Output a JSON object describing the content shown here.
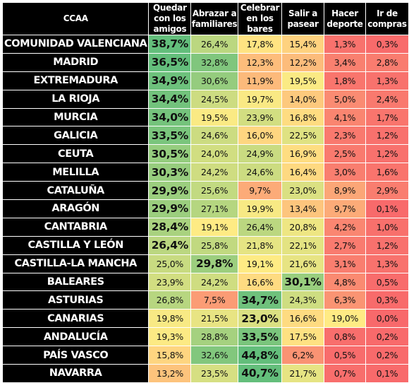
{
  "table": {
    "headers": [
      "CCAA",
      "Quedar con los amigos",
      "Abrazar a familiares",
      "Celebrar en los bares",
      "Salir a pasear",
      "Hacer deporte",
      "Ir de compras"
    ],
    "rows": [
      {
        "region": "COMUNIDAD VALENCIANA",
        "values": [
          "38,7%",
          "26,4%",
          "17,8%",
          "15,4%",
          "1,3%",
          "0,3%"
        ],
        "bold": 0
      },
      {
        "region": "MADRID",
        "values": [
          "36,5%",
          "32,8%",
          "12,3%",
          "12,2%",
          "3,4%",
          "2,8%"
        ],
        "bold": 0
      },
      {
        "region": "EXTREMADURA",
        "values": [
          "34,9%",
          "30,6%",
          "11,9%",
          "19,5%",
          "1,8%",
          "1,3%"
        ],
        "bold": 0
      },
      {
        "region": "LA RIOJA",
        "values": [
          "34,4%",
          "24,5%",
          "19,7%",
          "14,0%",
          "5,0%",
          "2,4%"
        ],
        "bold": 0
      },
      {
        "region": "MURCIA",
        "values": [
          "34,0%",
          "19,5%",
          "23,9%",
          "16,8%",
          "4,1%",
          "1,7%"
        ],
        "bold": 0
      },
      {
        "region": "GALICIA",
        "values": [
          "33,5%",
          "24,6%",
          "16,0%",
          "22,5%",
          "2,3%",
          "1,2%"
        ],
        "bold": 0
      },
      {
        "region": "CEUTA",
        "values": [
          "30,5%",
          "24,0%",
          "24,9%",
          "16,9%",
          "2,5%",
          "1,2%"
        ],
        "bold": 0
      },
      {
        "region": "MELILLA",
        "values": [
          "30,3%",
          "24,2%",
          "24,6%",
          "16,4%",
          "3,0%",
          "1,6%"
        ],
        "bold": 0
      },
      {
        "region": "CATALUÑA",
        "values": [
          "29,9%",
          "25,6%",
          "9,7%",
          "23,0%",
          "8,9%",
          "2,9%"
        ],
        "bold": 0
      },
      {
        "region": "ARAGÓN",
        "values": [
          "29,9%",
          "27,1%",
          "19,9%",
          "13,4%",
          "9,7%",
          "0,1%"
        ],
        "bold": 0
      },
      {
        "region": "CANTABRIA",
        "values": [
          "28,4%",
          "19,1%",
          "26,4%",
          "20,8%",
          "4,2%",
          "1,0%"
        ],
        "bold": 0
      },
      {
        "region": "CASTILLA Y LEÓN",
        "values": [
          "26,4%",
          "25,8%",
          "21,8%",
          "22,1%",
          "2,7%",
          "1,2%"
        ],
        "bold": 0
      },
      {
        "region": "CASTILLA-LA MANCHA",
        "values": [
          "25,0%",
          "29,8%",
          "19,1%",
          "21,6%",
          "3,1%",
          "1,3%"
        ],
        "bold": 1
      },
      {
        "region": "BALEARES",
        "values": [
          "23,9%",
          "24,2%",
          "16,6%",
          "30,1%",
          "4,8%",
          "0,5%"
        ],
        "bold": 3
      },
      {
        "region": "ASTURIAS",
        "values": [
          "26,8%",
          "7,5%",
          "34,7%",
          "24,3%",
          "6,3%",
          "0,3%"
        ],
        "bold": 2
      },
      {
        "region": "CANARIAS",
        "values": [
          "19,8%",
          "21,5%",
          "23,0%",
          "16,6%",
          "19,0%",
          "0,0%"
        ],
        "bold": 2
      },
      {
        "region": "ANDALUCÍA",
        "values": [
          "19,3%",
          "28,8%",
          "33,5%",
          "17,5%",
          "0,8%",
          "0,2%"
        ],
        "bold": 2
      },
      {
        "region": "PAÍS VASCO",
        "values": [
          "15,8%",
          "32,6%",
          "44,8%",
          "6,2%",
          "0,5%",
          "0,2%"
        ],
        "bold": 2
      },
      {
        "region": "NAVARRA",
        "values": [
          "13,2%",
          "23,5%",
          "40,7%",
          "21,7%",
          "0,7%",
          "0,1%"
        ],
        "bold": 2
      }
    ],
    "colors": {
      "header_bg": "#000000",
      "header_text": "#ffffff",
      "scale_low": "#f8696b",
      "scale_mid": "#ffeb84",
      "scale_high": "#63be7b"
    },
    "scale": {
      "min": 0,
      "mid": 19,
      "max": 36
    }
  }
}
